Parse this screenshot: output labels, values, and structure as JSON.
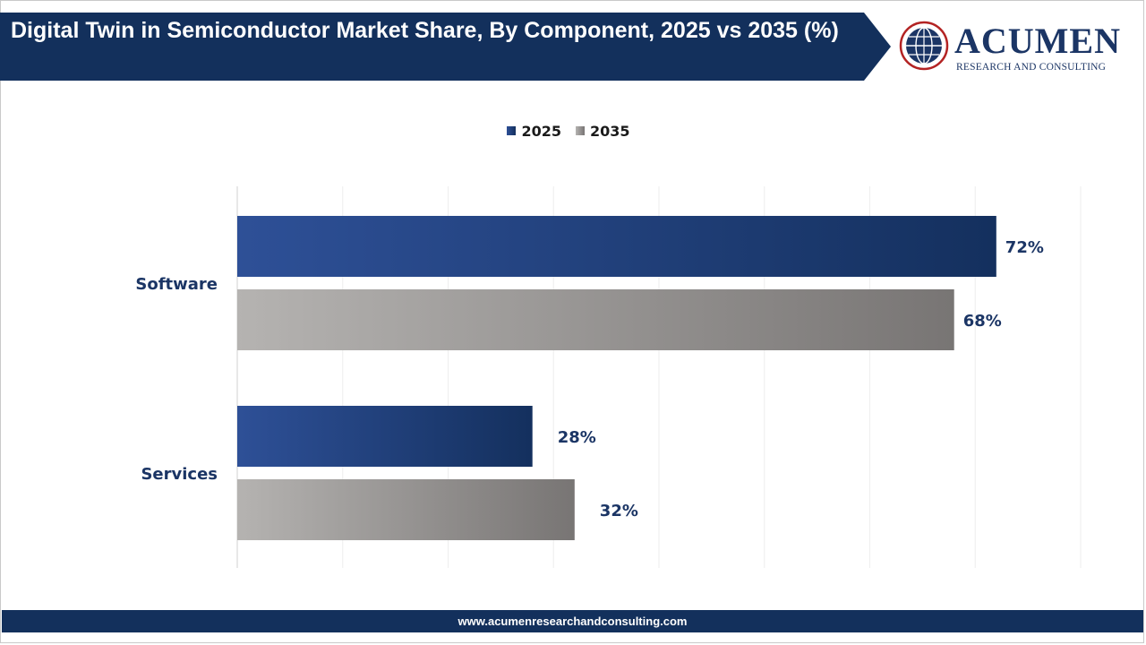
{
  "header": {
    "title": "Digital Twin in Semiconductor Market Share, By Component, 2025 vs 2035 (%)"
  },
  "logo": {
    "name": "ACUMEN",
    "tagline": "RESEARCH AND CONSULTING",
    "icon": "globe-icon"
  },
  "footer": {
    "url": "www.acumenresearchandconsulting.com"
  },
  "colors": {
    "series_2025": "#1e3a6e",
    "series_2035": "#8c8a88",
    "banner": "#13305c",
    "label_text": "#1b3565"
  },
  "chart_data": {
    "type": "bar",
    "orientation": "horizontal",
    "categories": [
      "Software",
      "Services"
    ],
    "series": [
      {
        "name": "2025",
        "values": [
          72,
          28
        ],
        "labels": [
          "72%",
          "28%"
        ]
      },
      {
        "name": "2035",
        "values": [
          68,
          32
        ],
        "labels": [
          "68%",
          "32%"
        ]
      }
    ],
    "xlim": [
      0,
      80
    ],
    "grid": true,
    "legend": "top-center",
    "unit": "%"
  }
}
